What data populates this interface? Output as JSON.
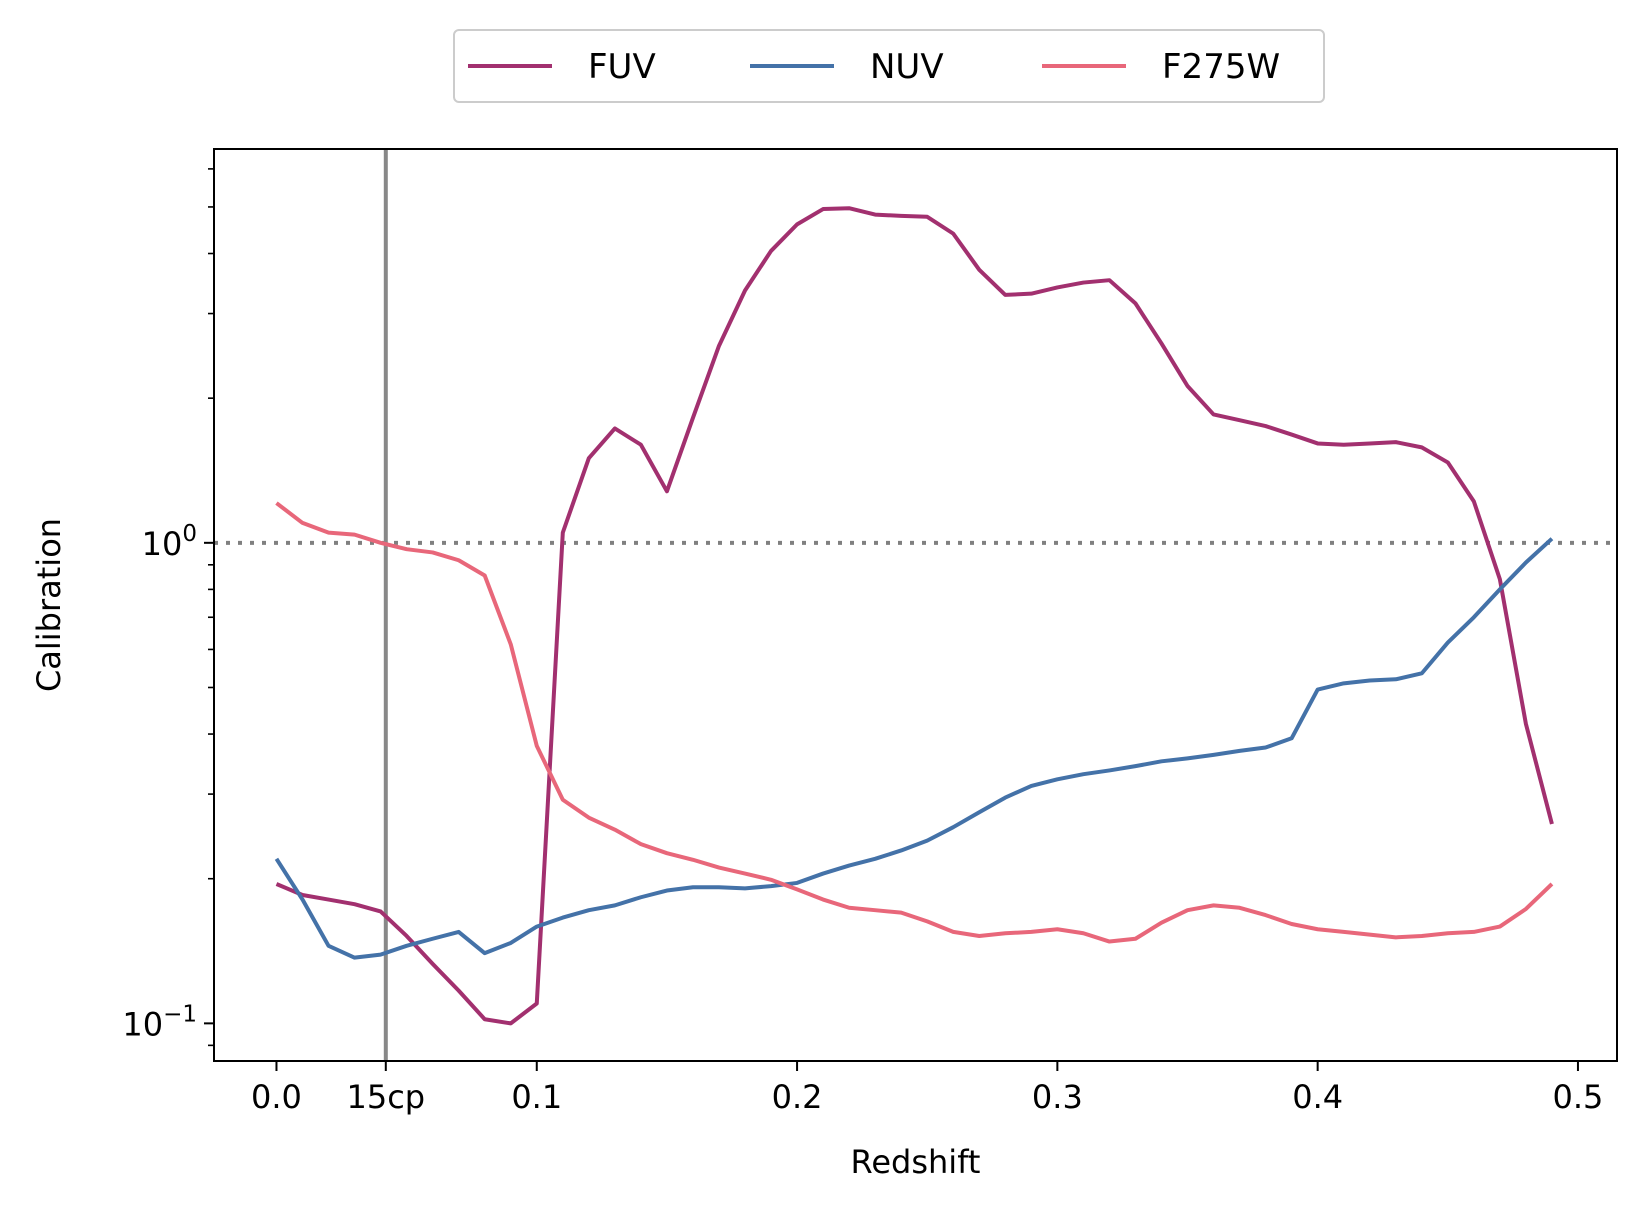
{
  "chart_data": {
    "type": "line",
    "xlabel": "Redshift",
    "ylabel": "Calibration",
    "yscale": "log",
    "xlim": [
      -0.024,
      0.515
    ],
    "ylim": [
      0.0835,
      6.6
    ],
    "x_ticks": [
      {
        "value": 0.0,
        "label": "0.0"
      },
      {
        "value": 0.042,
        "label": "15cp"
      },
      {
        "value": 0.1,
        "label": "0.1"
      },
      {
        "value": 0.2,
        "label": "0.2"
      },
      {
        "value": 0.3,
        "label": "0.3"
      },
      {
        "value": 0.4,
        "label": "0.4"
      },
      {
        "value": 0.5,
        "label": "0.5"
      }
    ],
    "y_major_ticks": [
      {
        "value": 0.1,
        "base": "10",
        "exp": "−1"
      },
      {
        "value": 1.0,
        "base": "10",
        "exp": "0"
      }
    ],
    "y_minor_ticks": [
      0.09,
      0.2,
      0.3,
      0.4,
      0.5,
      0.6,
      0.7,
      0.8,
      0.9,
      2,
      3,
      4,
      5,
      6
    ],
    "vline": {
      "x": 0.042,
      "color": "#888888"
    },
    "hline": {
      "y": 1.0,
      "color": "#808080",
      "style": "dotted"
    },
    "legend": {
      "position": "top-center"
    },
    "grid": false,
    "x": [
      0.0,
      0.01,
      0.02,
      0.03,
      0.04,
      0.05,
      0.06,
      0.07,
      0.08,
      0.09,
      0.1,
      0.11,
      0.12,
      0.13,
      0.14,
      0.15,
      0.16,
      0.17,
      0.18,
      0.19,
      0.2,
      0.21,
      0.22,
      0.23,
      0.24,
      0.25,
      0.26,
      0.27,
      0.28,
      0.29,
      0.3,
      0.31,
      0.32,
      0.33,
      0.34,
      0.35,
      0.36,
      0.37,
      0.38,
      0.39,
      0.4,
      0.41,
      0.42,
      0.43,
      0.44,
      0.45,
      0.46,
      0.47,
      0.48,
      0.49
    ],
    "series": [
      {
        "name": "FUV",
        "color": "#a2306f",
        "values": [
          0.195,
          0.185,
          0.181,
          0.177,
          0.171,
          0.152,
          0.133,
          0.117,
          0.102,
          0.1,
          0.11,
          1.05,
          1.5,
          1.73,
          1.6,
          1.28,
          1.82,
          2.57,
          3.35,
          4.05,
          4.6,
          4.95,
          4.97,
          4.82,
          4.79,
          4.77,
          4.4,
          3.7,
          3.28,
          3.3,
          3.4,
          3.48,
          3.52,
          3.15,
          2.6,
          2.12,
          1.85,
          1.8,
          1.75,
          1.68,
          1.61,
          1.6,
          1.61,
          1.62,
          1.58,
          1.47,
          1.22,
          0.84,
          0.42,
          0.26
        ]
      },
      {
        "name": "NUV",
        "color": "#4472a8",
        "values": [
          0.22,
          0.181,
          0.145,
          0.137,
          0.139,
          0.145,
          0.15,
          0.155,
          0.14,
          0.147,
          0.159,
          0.166,
          0.172,
          0.176,
          0.183,
          0.189,
          0.192,
          0.192,
          0.191,
          0.193,
          0.196,
          0.205,
          0.213,
          0.22,
          0.229,
          0.24,
          0.256,
          0.275,
          0.295,
          0.312,
          0.322,
          0.33,
          0.336,
          0.343,
          0.351,
          0.356,
          0.362,
          0.369,
          0.375,
          0.392,
          0.495,
          0.51,
          0.517,
          0.52,
          0.535,
          0.62,
          0.7,
          0.8,
          0.91,
          1.02
        ]
      },
      {
        "name": "F275W",
        "color": "#e8677a",
        "values": [
          1.21,
          1.1,
          1.05,
          1.04,
          1.0,
          0.97,
          0.955,
          0.92,
          0.855,
          0.615,
          0.378,
          0.292,
          0.268,
          0.253,
          0.236,
          0.226,
          0.219,
          0.211,
          0.205,
          0.199,
          0.19,
          0.181,
          0.174,
          0.172,
          0.17,
          0.163,
          0.155,
          0.152,
          0.154,
          0.155,
          0.157,
          0.154,
          0.148,
          0.15,
          0.162,
          0.172,
          0.176,
          0.174,
          0.168,
          0.161,
          0.157,
          0.155,
          0.153,
          0.151,
          0.152,
          0.154,
          0.155,
          0.159,
          0.173,
          0.195
        ]
      }
    ]
  }
}
